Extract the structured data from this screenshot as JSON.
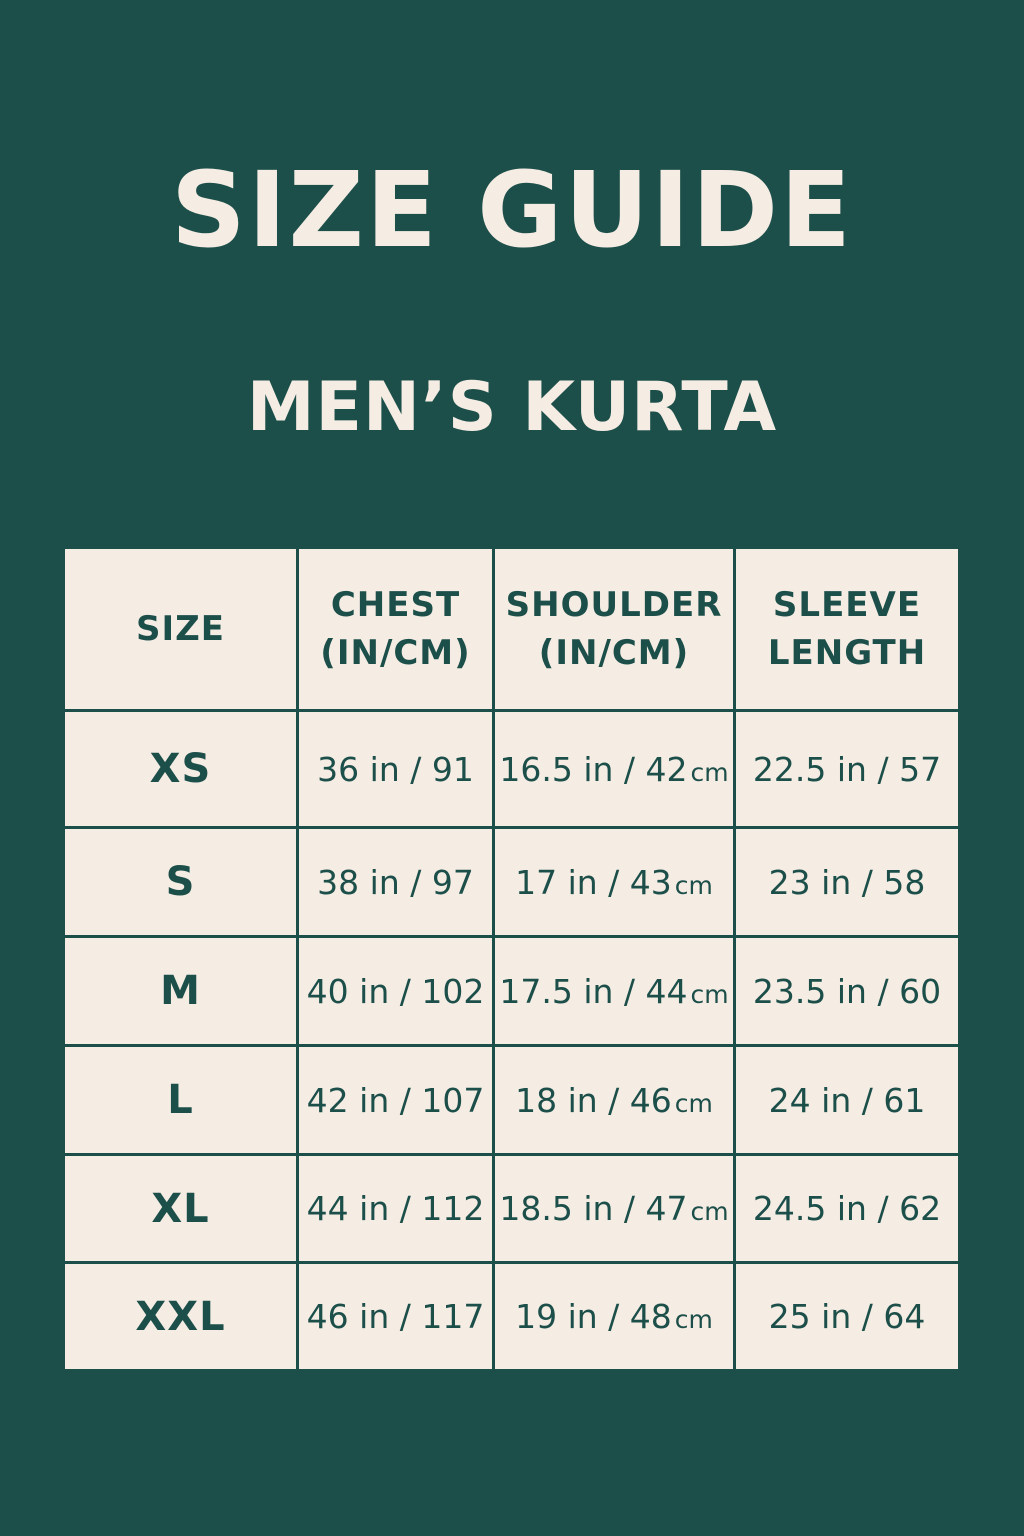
{
  "title": "SIZE GUIDE",
  "subtitle": "MEN’S KURTA",
  "colors": {
    "background": "#1d4f4a",
    "cell": "#f5ede4",
    "text": "#1d4f4a"
  },
  "table": {
    "headers": [
      {
        "line1": "SIZE",
        "line2": ""
      },
      {
        "line1": "CHEST",
        "line2": "(IN/CM)"
      },
      {
        "line1": "SHOULDER",
        "line2": "(IN/CM)"
      },
      {
        "line1": "SLEEVE",
        "line2": "LENGTH"
      }
    ],
    "rows": [
      {
        "size": "XS",
        "chest": "36 in / 91",
        "shoulder": "16.5 in / 42",
        "shoulder_unit": "cm",
        "sleeve": "22.5 in / 57"
      },
      {
        "size": "S",
        "chest": "38 in / 97",
        "shoulder": "17 in / 43",
        "shoulder_unit": "cm",
        "sleeve": "23 in / 58"
      },
      {
        "size": "M",
        "chest": "40 in / 102",
        "shoulder": "17.5 in / 44",
        "shoulder_unit": "cm",
        "sleeve": "23.5 in / 60"
      },
      {
        "size": "L",
        "chest": "42 in / 107",
        "shoulder": "18 in / 46",
        "shoulder_unit": "cm",
        "sleeve": "24 in / 61"
      },
      {
        "size": "XL",
        "chest": "44 in / 112",
        "shoulder": "18.5 in / 47",
        "shoulder_unit": "cm",
        "sleeve": "24.5 in / 62"
      },
      {
        "size": "XXL",
        "chest": "46 in / 117",
        "shoulder": "19 in / 48",
        "shoulder_unit": "cm",
        "sleeve": "25 in / 64"
      }
    ]
  }
}
